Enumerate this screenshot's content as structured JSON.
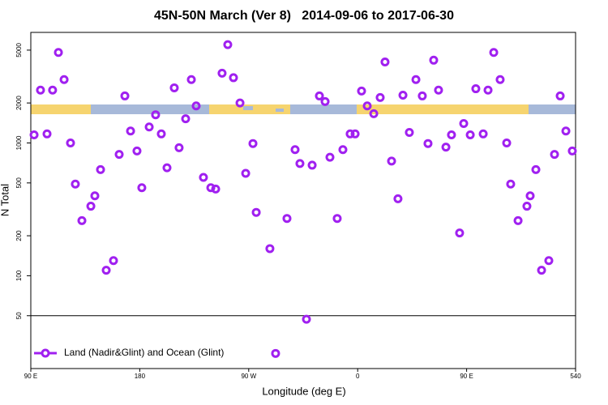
{
  "chart_data": {
    "type": "scatter",
    "title": "45N-50N March (Ver 8)   2014-09-06 to 2017-06-30",
    "x_label": "Longitude (deg E)",
    "y_label": "N Total",
    "y_scale": "log",
    "hline": 50,
    "legend_position": "bottom left",
    "xlim": [
      90,
      540
    ],
    "ylim": [
      20,
      6800
    ],
    "xticks": [
      {
        "value": 90,
        "label": "90 E"
      },
      180,
      {
        "value": 270,
        "label": "90 W"
      },
      {
        "value": 360,
        "label": "0"
      },
      {
        "value": 450,
        "label": "90 E"
      },
      540
    ],
    "yticks": [
      50,
      100,
      200,
      500,
      1000,
      2000,
      5000
    ],
    "series": [
      {
        "name": "Land (Nadir&Glint) and Ocean (Glint)",
        "color": "#a020f0",
        "x": [
          92.7,
          98,
          103.4,
          108,
          112.8,
          117.5,
          122.8,
          126.8,
          132.2,
          139.6,
          142.9,
          147.6,
          152.3,
          158.3,
          163,
          167.7,
          172.4,
          177.7,
          181.7,
          187.8,
          193.1,
          197.8,
          202.5,
          208.5,
          212.5,
          217.9,
          222.6,
          226.6,
          232.6,
          238.7,
          242.7,
          248,
          252.7,
          257.4,
          262.8,
          267.5,
          273.5,
          276.2,
          287.5,
          292.2,
          301.6,
          308.3,
          312.3,
          317.7,
          322.4,
          328.4,
          333.1,
          337.1,
          343.1,
          347.8,
          353.8,
          357.9,
          363.2,
          367.9,
          373.3,
          378.6,
          382.6,
          388,
          393.3,
          397.4,
          402.7,
          408.1,
          413.4,
          418.1,
          422.8,
          426.8,
          432.9,
          437.5,
          444.2,
          447.6,
          453,
          457.6,
          463.7,
          467.7,
          472.4,
          477.7,
          483.1,
          486.4,
          492.5,
          499.8,
          502.5,
          507.2,
          511.9,
          517.9,
          522.6,
          527.3,
          532,
          537.3
        ],
        "values": [
          1150,
          2500,
          1170,
          2500,
          4800,
          3000,
          1000,
          490,
          260,
          334,
          400,
          630,
          110,
          130,
          820,
          2260,
          1230,
          870,
          460,
          1320,
          1630,
          1170,
          650,
          2600,
          920,
          1520,
          3000,
          1900,
          550,
          460,
          450,
          3350,
          5500,
          3100,
          2000,
          590,
          990,
          300,
          160,
          26,
          270,
          890,
          700,
          47,
          680,
          2260,
          2050,
          780,
          270,
          890,
          1170,
          1170,
          2460,
          1900,
          1660,
          2200,
          4070,
          730,
          380,
          2290,
          1200,
          3000,
          2260,
          990,
          4200,
          2500,
          930,
          1150,
          210,
          1400,
          1150,
          2560,
          1170,
          2500,
          4800,
          3000,
          1000,
          490,
          260,
          334,
          400,
          630,
          110,
          130,
          820,
          2260,
          1230,
          870
        ]
      }
    ]
  }
}
